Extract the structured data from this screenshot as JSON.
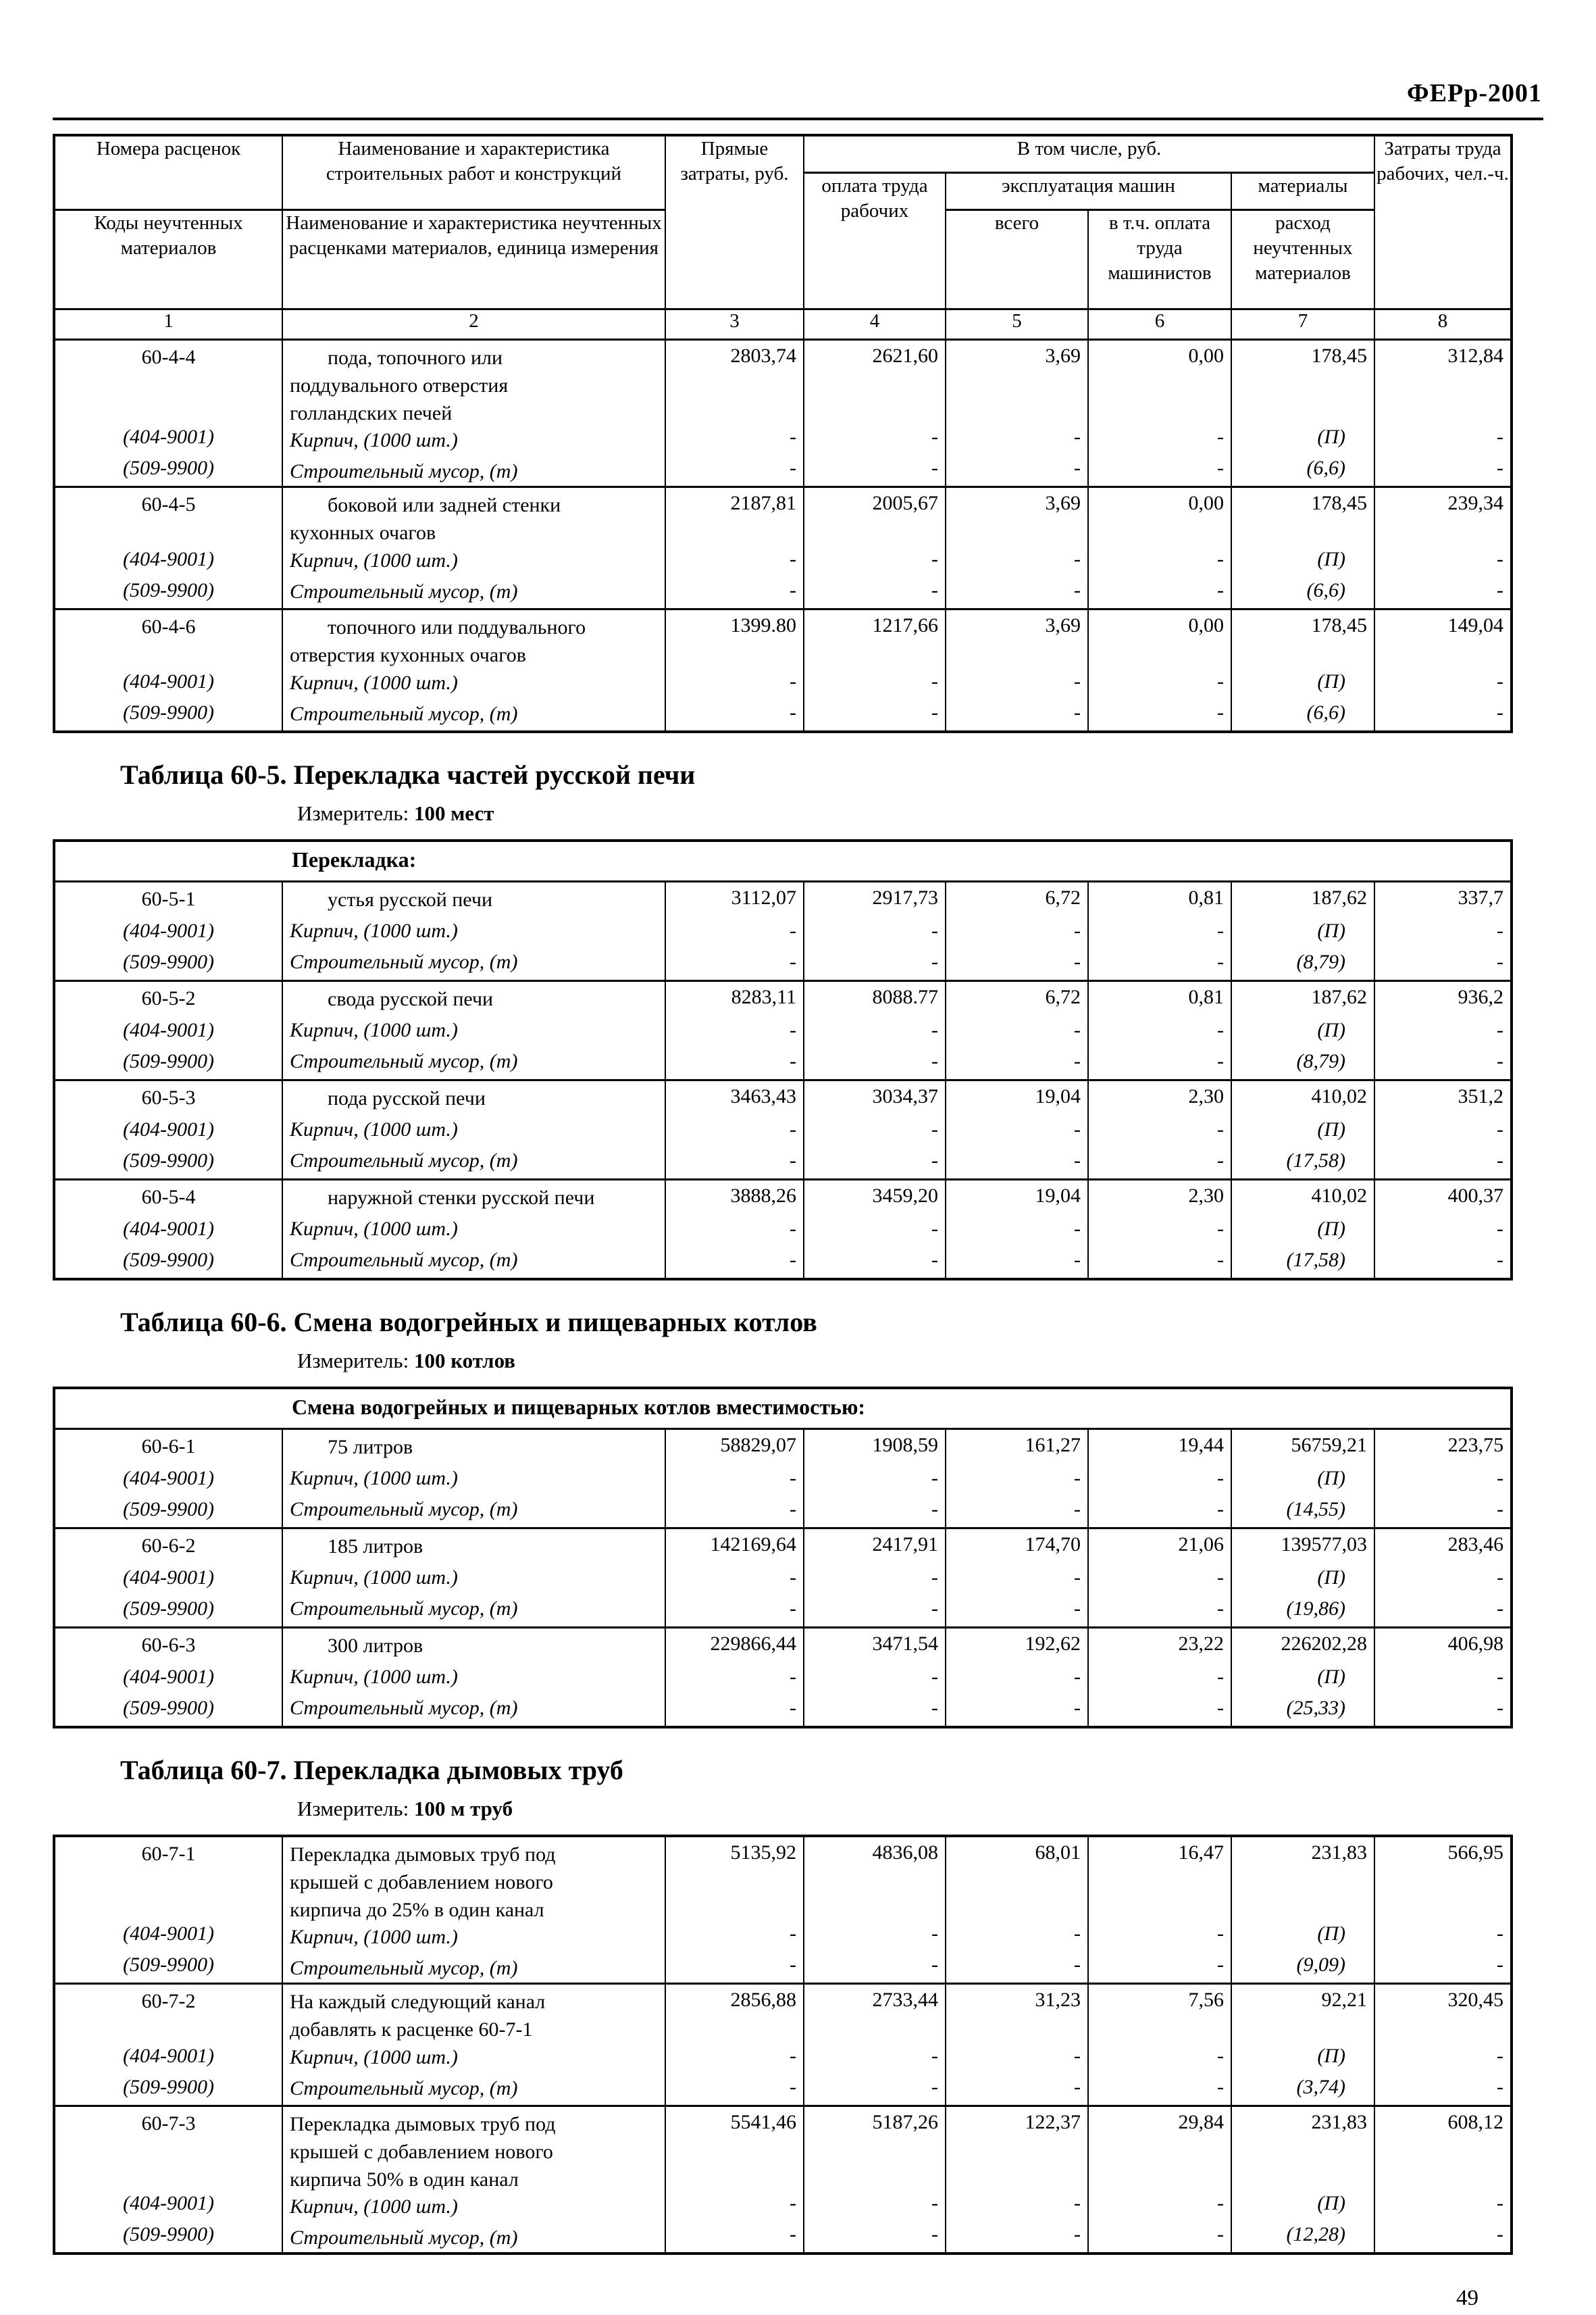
{
  "page": {
    "doc_code": "ФЕРр-2001",
    "page_number": "49"
  },
  "symbols": {
    "dash": "-"
  },
  "main_table": {
    "header": {
      "col1_top": "Номера расценок",
      "col2_top": "Наименование и характеристика строительных работ и конструкций",
      "col3": "Прямые затраты, руб.",
      "include_group": "В том числе, руб.",
      "col8": "Затраты труда рабочих, чел.-ч.",
      "col4": "оплата труда рабочих",
      "machines_group": "эксплуатация машин",
      "materials_group": "материалы",
      "col1_bottom": "Коды неучтенных материалов",
      "col2_bottom": "Наименование и характеристика неучтенных расценками материалов, единица измерения",
      "col5": "всего",
      "col6": "в т.ч. оплата труда машинистов",
      "col7": "расход неучтенных материалов",
      "numbers": [
        "1",
        "2",
        "3",
        "4",
        "5",
        "6",
        "7",
        "8"
      ]
    },
    "entries": [
      {
        "code": "60-4-4",
        "indent": true,
        "name_lines": [
          "пода, топочного или",
          "поддувального отверстия",
          "голландских печей"
        ],
        "values": [
          "2803,74",
          "2621,60",
          "3,69",
          "0,00",
          "178,45",
          "312,84"
        ],
        "materials": [
          {
            "code": "(404-9001)",
            "name": "Кирпич, (1000 шт.)",
            "consumption": "(П)"
          },
          {
            "code": "(509-9900)",
            "name": "Строительный мусор, (т)",
            "consumption": "(6,6)"
          }
        ]
      },
      {
        "code": "60-4-5",
        "indent": true,
        "name_lines": [
          "боковой или задней стенки",
          "кухонных очагов"
        ],
        "values": [
          "2187,81",
          "2005,67",
          "3,69",
          "0,00",
          "178,45",
          "239,34"
        ],
        "materials": [
          {
            "code": "(404-9001)",
            "name": "Кирпич, (1000 шт.)",
            "consumption": "(П)"
          },
          {
            "code": "(509-9900)",
            "name": "Строительный мусор, (т)",
            "consumption": "(6,6)"
          }
        ]
      },
      {
        "code": "60-4-6",
        "indent": true,
        "name_lines": [
          "топочного или поддувального",
          "отверстия кухонных очагов"
        ],
        "values": [
          "1399.80",
          "1217,66",
          "3,69",
          "0,00",
          "178,45",
          "149,04"
        ],
        "materials": [
          {
            "code": "(404-9001)",
            "name": "Кирпич, (1000 шт.)",
            "consumption": "(П)"
          },
          {
            "code": "(509-9900)",
            "name": "Строительный мусор, (т)",
            "consumption": "(6,6)"
          }
        ]
      }
    ]
  },
  "sections": [
    {
      "title": "Таблица 60-5. Перекладка частей русской печи",
      "measure_label": "Измеритель:",
      "measure_value": "100 мест",
      "group_row": "Перекладка:",
      "entries": [
        {
          "code": "60-5-1",
          "indent": true,
          "name_lines": [
            "устья русской печи"
          ],
          "values": [
            "3112,07",
            "2917,73",
            "6,72",
            "0,81",
            "187,62",
            "337,7"
          ],
          "materials": [
            {
              "code": "(404-9001)",
              "name": "Кирпич, (1000 шт.)",
              "consumption": "(П)"
            },
            {
              "code": "(509-9900)",
              "name": "Строительный мусор, (т)",
              "consumption": "(8,79)"
            }
          ]
        },
        {
          "code": "60-5-2",
          "indent": true,
          "name_lines": [
            "свода русской печи"
          ],
          "values": [
            "8283,11",
            "8088.77",
            "6,72",
            "0,81",
            "187,62",
            "936,2"
          ],
          "materials": [
            {
              "code": "(404-9001)",
              "name": "Кирпич, (1000 шт.)",
              "consumption": "(П)"
            },
            {
              "code": "(509-9900)",
              "name": "Строительный мусор, (т)",
              "consumption": "(8,79)"
            }
          ]
        },
        {
          "code": "60-5-3",
          "indent": true,
          "name_lines": [
            "пода русской печи"
          ],
          "values": [
            "3463,43",
            "3034,37",
            "19,04",
            "2,30",
            "410,02",
            "351,2"
          ],
          "materials": [
            {
              "code": "(404-9001)",
              "name": "Кирпич, (1000 шт.)",
              "consumption": "(П)"
            },
            {
              "code": "(509-9900)",
              "name": "Строительный мусор, (т)",
              "consumption": "(17,58)"
            }
          ]
        },
        {
          "code": "60-5-4",
          "indent": true,
          "name_lines": [
            "наружной стенки русской печи"
          ],
          "values": [
            "3888,26",
            "3459,20",
            "19,04",
            "2,30",
            "410,02",
            "400,37"
          ],
          "materials": [
            {
              "code": "(404-9001)",
              "name": "Кирпич, (1000 шт.)",
              "consumption": "(П)"
            },
            {
              "code": "(509-9900)",
              "name": "Строительный мусор, (т)",
              "consumption": "(17,58)"
            }
          ]
        }
      ]
    },
    {
      "title": "Таблица 60-6. Смена водогрейных и пищеварных котлов",
      "measure_label": "Измеритель:",
      "measure_value": "100 котлов",
      "group_row": "Смена водогрейных и пищеварных котлов вместимостью:",
      "entries": [
        {
          "code": "60-6-1",
          "indent": true,
          "name_lines": [
            "75 литров"
          ],
          "values": [
            "58829,07",
            "1908,59",
            "161,27",
            "19,44",
            "56759,21",
            "223,75"
          ],
          "materials": [
            {
              "code": "(404-9001)",
              "name": "Кирпич, (1000 шт.)",
              "consumption": "(П)"
            },
            {
              "code": "(509-9900)",
              "name": "Строительный мусор, (т)",
              "consumption": "(14,55)"
            }
          ]
        },
        {
          "code": "60-6-2",
          "indent": true,
          "name_lines": [
            "185 литров"
          ],
          "values": [
            "142169,64",
            "2417,91",
            "174,70",
            "21,06",
            "139577,03",
            "283,46"
          ],
          "materials": [
            {
              "code": "(404-9001)",
              "name": "Кирпич, (1000 шт.)",
              "consumption": "(П)"
            },
            {
              "code": "(509-9900)",
              "name": "Строительный мусор, (т)",
              "consumption": "(19,86)"
            }
          ]
        },
        {
          "code": "60-6-3",
          "indent": true,
          "name_lines": [
            "300 литров"
          ],
          "values": [
            "229866,44",
            "3471,54",
            "192,62",
            "23,22",
            "226202,28",
            "406,98"
          ],
          "materials": [
            {
              "code": "(404-9001)",
              "name": "Кирпич, (1000 шт.)",
              "consumption": "(П)"
            },
            {
              "code": "(509-9900)",
              "name": "Строительный мусор, (т)",
              "consumption": "(25,33)"
            }
          ]
        }
      ]
    },
    {
      "title": "Таблица 60-7. Перекладка дымовых труб",
      "measure_label": "Измеритель:",
      "measure_value": "100 м труб",
      "group_row": null,
      "entries": [
        {
          "code": "60-7-1",
          "indent": false,
          "name_lines": [
            "Перекладка дымовых труб под",
            "крышей с добавлением нового",
            "кирпича до 25% в один канал"
          ],
          "values": [
            "5135,92",
            "4836,08",
            "68,01",
            "16,47",
            "231,83",
            "566,95"
          ],
          "materials": [
            {
              "code": "(404-9001)",
              "name": "Кирпич, (1000 шт.)",
              "consumption": "(П)"
            },
            {
              "code": "(509-9900)",
              "name": "Строительный мусор, (т)",
              "consumption": "(9,09)"
            }
          ]
        },
        {
          "code": "60-7-2",
          "indent": false,
          "name_lines": [
            "На каждый следующий канал",
            "добавлять к расценке 60-7-1"
          ],
          "values": [
            "2856,88",
            "2733,44",
            "31,23",
            "7,56",
            "92,21",
            "320,45"
          ],
          "materials": [
            {
              "code": "(404-9001)",
              "name": "Кирпич, (1000 шт.)",
              "consumption": "(П)"
            },
            {
              "code": "(509-9900)",
              "name": "Строительный мусор, (т)",
              "consumption": "(3,74)"
            }
          ]
        },
        {
          "code": "60-7-3",
          "indent": false,
          "name_lines": [
            "Перекладка дымовых труб под",
            "крышей с добавлением нового",
            "кирпича 50% в один канал"
          ],
          "values": [
            "5541,46",
            "5187,26",
            "122,37",
            "29,84",
            "231,83",
            "608,12"
          ],
          "materials": [
            {
              "code": "(404-9001)",
              "name": "Кирпич, (1000 шт.)",
              "consumption": "(П)"
            },
            {
              "code": "(509-9900)",
              "name": "Строительный мусор, (т)",
              "consumption": "(12,28)"
            }
          ]
        }
      ]
    }
  ]
}
